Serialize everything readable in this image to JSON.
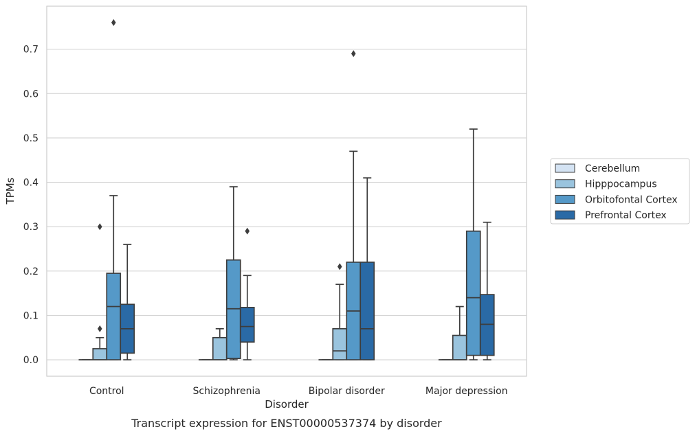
{
  "chart_data": {
    "type": "box",
    "title": "",
    "caption": "Transcript expression for ENST00000537374 by disorder",
    "xlabel": "Disorder",
    "ylabel": "TPMs",
    "ylim": [
      -0.037,
      0.797
    ],
    "yticks": [
      0.0,
      0.1,
      0.2,
      0.3,
      0.4,
      0.5,
      0.6,
      0.7
    ],
    "ytick_labels": [
      "0.0",
      "0.1",
      "0.2",
      "0.3",
      "0.4",
      "0.5",
      "0.6",
      "0.7"
    ],
    "grid": true,
    "legend_position": "right-outside",
    "categories": [
      "Control",
      "Schizophrenia",
      "Bipolar disorder",
      "Major depression"
    ],
    "series": [
      {
        "name": "Cerebellum",
        "color": "#d4e3f3",
        "boxes": [
          {
            "whisker_low": 0.0,
            "q1": 0.0,
            "median": 0.0,
            "q3": 0.0,
            "whisker_high": 0.0,
            "outliers": []
          },
          {
            "whisker_low": 0.0,
            "q1": 0.0,
            "median": 0.0,
            "q3": 0.0,
            "whisker_high": 0.0,
            "outliers": []
          },
          {
            "whisker_low": 0.0,
            "q1": 0.0,
            "median": 0.0,
            "q3": 0.0,
            "whisker_high": 0.0,
            "outliers": []
          },
          {
            "whisker_low": 0.0,
            "q1": 0.0,
            "median": 0.0,
            "q3": 0.0,
            "whisker_high": 0.0,
            "outliers": []
          }
        ]
      },
      {
        "name": "Hipppocampus",
        "color": "#9ac4de",
        "boxes": [
          {
            "whisker_low": 0.0,
            "q1": 0.0,
            "median": 0.0,
            "q3": 0.025,
            "whisker_high": 0.05,
            "outliers": [
              0.07,
              0.3
            ]
          },
          {
            "whisker_low": 0.0,
            "q1": 0.0,
            "median": 0.0,
            "q3": 0.05,
            "whisker_high": 0.07,
            "outliers": []
          },
          {
            "whisker_low": 0.0,
            "q1": 0.0,
            "median": 0.02,
            "q3": 0.07,
            "whisker_high": 0.17,
            "outliers": [
              0.21
            ]
          },
          {
            "whisker_low": 0.0,
            "q1": 0.0,
            "median": 0.0,
            "q3": 0.055,
            "whisker_high": 0.12,
            "outliers": []
          }
        ]
      },
      {
        "name": "Orbitofontal Cortex",
        "color": "#5599c8",
        "boxes": [
          {
            "whisker_low": 0.0,
            "q1": 0.0,
            "median": 0.12,
            "q3": 0.195,
            "whisker_high": 0.37,
            "outliers": [
              0.76
            ]
          },
          {
            "whisker_low": 0.0,
            "q1": 0.003,
            "median": 0.115,
            "q3": 0.225,
            "whisker_high": 0.39,
            "outliers": []
          },
          {
            "whisker_low": 0.0,
            "q1": 0.0,
            "median": 0.11,
            "q3": 0.22,
            "whisker_high": 0.47,
            "outliers": [
              0.69
            ]
          },
          {
            "whisker_low": 0.0,
            "q1": 0.01,
            "median": 0.14,
            "q3": 0.29,
            "whisker_high": 0.52,
            "outliers": []
          }
        ]
      },
      {
        "name": "Prefrontal Cortex",
        "color": "#2a6aa6",
        "boxes": [
          {
            "whisker_low": 0.0,
            "q1": 0.015,
            "median": 0.07,
            "q3": 0.125,
            "whisker_high": 0.26,
            "outliers": []
          },
          {
            "whisker_low": 0.0,
            "q1": 0.04,
            "median": 0.075,
            "q3": 0.118,
            "whisker_high": 0.19,
            "outliers": [
              0.29
            ]
          },
          {
            "whisker_low": 0.0,
            "q1": 0.0,
            "median": 0.07,
            "q3": 0.22,
            "whisker_high": 0.41,
            "outliers": []
          },
          {
            "whisker_low": 0.0,
            "q1": 0.01,
            "median": 0.08,
            "q3": 0.147,
            "whisker_high": 0.31,
            "outliers": []
          }
        ]
      }
    ]
  }
}
